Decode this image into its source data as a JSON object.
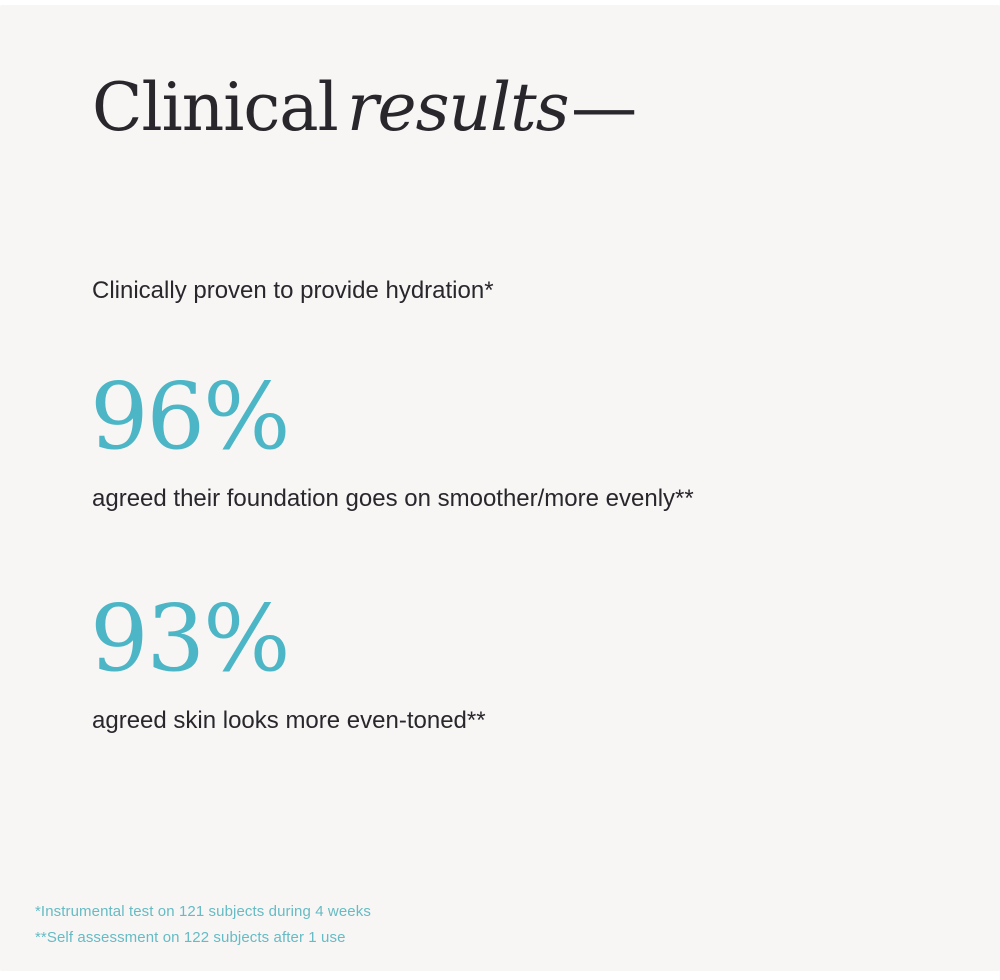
{
  "colors": {
    "background": "#f7f6f5",
    "page_edge": "#ffffff",
    "text_dark": "#29272c",
    "accent_teal": "#4cb6c6",
    "footnote_teal": "#66bbc4"
  },
  "header": {
    "title_regular": "Clinical",
    "title_italic": "results",
    "title_dash": "—"
  },
  "intro": {
    "text": "Clinically proven to provide hydration*"
  },
  "stats": [
    {
      "value": "96%",
      "label": "agreed their foundation goes on smoother/more evenly**"
    },
    {
      "value": "93%",
      "label": "agreed skin looks more even-toned**"
    }
  ],
  "footnotes": [
    "*Instrumental test on 121 subjects during 4 weeks",
    "**Self assessment on 122 subjects after 1 use"
  ]
}
